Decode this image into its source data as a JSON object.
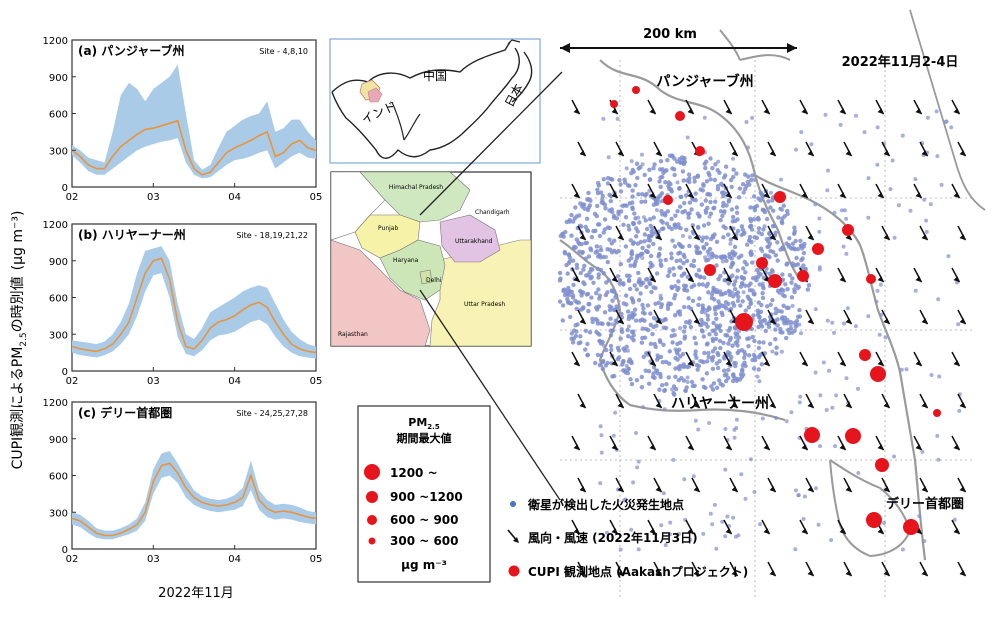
{
  "y_axis_title": "CUPI観測によるPM",
  "y_axis_sub": "2.5",
  "y_axis_title_rest": "の時別値",
  "y_axis_unit": "(μg m⁻³)",
  "x_axis_title": "2022年11月",
  "date_label": "2022年11月2-4日",
  "scale_label": "200 km",
  "chart_data": [
    {
      "type": "line",
      "panel": "(a) パンジャーブ州",
      "sites": "Site - 4,8,10",
      "x_ticks": [
        "02",
        "03",
        "04",
        "05"
      ],
      "ylim": [
        0,
        1200
      ],
      "y_ticks": [
        0,
        300,
        600,
        900,
        1200
      ],
      "x": [
        2.0,
        2.1,
        2.2,
        2.3,
        2.4,
        2.5,
        2.6,
        2.7,
        2.8,
        2.9,
        3.0,
        3.1,
        3.2,
        3.3,
        3.4,
        3.5,
        3.6,
        3.7,
        3.8,
        3.9,
        4.0,
        4.1,
        4.2,
        4.3,
        4.4,
        4.5,
        4.6,
        4.7,
        4.8,
        4.9,
        5.0
      ],
      "median": [
        300,
        250,
        180,
        150,
        150,
        250,
        330,
        380,
        430,
        470,
        480,
        500,
        520,
        540,
        300,
        150,
        100,
        120,
        200,
        280,
        320,
        350,
        380,
        420,
        450,
        250,
        280,
        350,
        380,
        320,
        300
      ],
      "upper": [
        340,
        300,
        240,
        220,
        200,
        450,
        750,
        850,
        800,
        700,
        800,
        850,
        900,
        1000,
        600,
        220,
        140,
        180,
        320,
        450,
        500,
        550,
        580,
        600,
        700,
        450,
        480,
        550,
        550,
        450,
        380
      ],
      "lower": [
        260,
        200,
        130,
        100,
        100,
        150,
        200,
        250,
        300,
        330,
        350,
        370,
        380,
        400,
        200,
        100,
        70,
        80,
        130,
        180,
        220,
        230,
        250,
        280,
        300,
        150,
        200,
        250,
        280,
        240,
        230
      ]
    },
    {
      "type": "line",
      "panel": "(b) ハリヤーナー州",
      "sites": "Site - 18,19,21,22",
      "x_ticks": [
        "02",
        "03",
        "04",
        "05"
      ],
      "ylim": [
        0,
        1200
      ],
      "y_ticks": [
        0,
        300,
        600,
        900,
        1200
      ],
      "x": [
        2.0,
        2.1,
        2.2,
        2.3,
        2.4,
        2.5,
        2.6,
        2.7,
        2.8,
        2.9,
        3.0,
        3.1,
        3.2,
        3.3,
        3.4,
        3.5,
        3.6,
        3.7,
        3.8,
        3.9,
        4.0,
        4.1,
        4.2,
        4.3,
        4.4,
        4.5,
        4.6,
        4.7,
        4.8,
        4.9,
        5.0
      ],
      "median": [
        200,
        180,
        170,
        160,
        180,
        220,
        300,
        400,
        600,
        800,
        900,
        920,
        750,
        400,
        200,
        180,
        250,
        350,
        400,
        420,
        450,
        500,
        540,
        560,
        520,
        400,
        300,
        220,
        180,
        160,
        150
      ],
      "upper": [
        250,
        240,
        230,
        220,
        240,
        300,
        400,
        550,
        800,
        980,
        1000,
        1020,
        900,
        550,
        300,
        260,
        350,
        480,
        520,
        560,
        600,
        650,
        680,
        700,
        680,
        550,
        420,
        320,
        260,
        220,
        200
      ],
      "lower": [
        150,
        130,
        120,
        110,
        130,
        160,
        220,
        300,
        450,
        650,
        780,
        800,
        600,
        280,
        140,
        120,
        170,
        250,
        290,
        300,
        320,
        360,
        400,
        420,
        380,
        280,
        200,
        150,
        120,
        110,
        100
      ]
    },
    {
      "type": "line",
      "panel": "(c) デリー首都圏",
      "sites": "Site - 24,25,27,28",
      "x_ticks": [
        "02",
        "03",
        "04",
        "05"
      ],
      "ylim": [
        0,
        1200
      ],
      "y_ticks": [
        0,
        300,
        600,
        900,
        1200
      ],
      "x": [
        2.0,
        2.1,
        2.2,
        2.3,
        2.4,
        2.5,
        2.6,
        2.7,
        2.8,
        2.9,
        3.0,
        3.1,
        3.2,
        3.3,
        3.4,
        3.5,
        3.6,
        3.7,
        3.8,
        3.9,
        4.0,
        4.1,
        4.2,
        4.3,
        4.4,
        4.5,
        4.6,
        4.7,
        4.8,
        4.9,
        5.0
      ],
      "median": [
        250,
        230,
        180,
        130,
        110,
        110,
        130,
        160,
        200,
        300,
        550,
        680,
        700,
        620,
        500,
        420,
        380,
        360,
        350,
        360,
        380,
        420,
        600,
        400,
        330,
        300,
        310,
        300,
        280,
        260,
        250
      ],
      "upper": [
        300,
        280,
        230,
        170,
        150,
        150,
        170,
        200,
        250,
        380,
        650,
        780,
        800,
        700,
        580,
        480,
        430,
        410,
        400,
        410,
        440,
        500,
        720,
        480,
        400,
        360,
        370,
        360,
        340,
        310,
        300
      ],
      "lower": [
        200,
        180,
        130,
        90,
        80,
        80,
        100,
        120,
        150,
        230,
        450,
        580,
        600,
        540,
        420,
        360,
        330,
        310,
        300,
        310,
        320,
        350,
        480,
        320,
        260,
        240,
        250,
        240,
        220,
        210,
        200
      ]
    }
  ],
  "inset_country": {
    "china": "中国",
    "japan": "日本",
    "india": "インド"
  },
  "inset_states": {
    "himachal": "Himachal Pradesh",
    "chandigarh": "Chandigarh",
    "punjab": "Punjab",
    "uttarakhand": "Uttarakhand",
    "haryana": "Haryana",
    "delhi": "Delhi",
    "uttar": "Uttar Pradesh",
    "rajasthan": "Rajasthan"
  },
  "map_labels": {
    "punjab": "パンジャーブ州",
    "haryana": "ハリヤーナー州",
    "delhi": "デリー首都圏"
  },
  "legend_box": {
    "title1": "PM",
    "title1_sub": "2.5",
    "title2": "期間最大値",
    "entries": [
      "1200 ~",
      "900 ~1200",
      "600 ~  900",
      "300 ~  600"
    ],
    "unit": "μg m⁻³"
  },
  "map_legend": {
    "fire": "衛星が検出した火災発生地点",
    "wind": "風向・風速 (2022年11月3日)",
    "cupi": "CUPI 観測地点 (Aakashプロジェクト)"
  },
  "colors": {
    "band": "#a9cbe8",
    "median": "#e8943c",
    "fire": "#7f8fcf",
    "site": "#e8141c",
    "punjab": "#f6f3a8",
    "haryana": "#cde6b8",
    "himachal": "#cfe8c0",
    "uttarakhand": "#e3c3e3",
    "rajasthan": "#f3c6c6",
    "uttar": "#f8f3b4"
  }
}
